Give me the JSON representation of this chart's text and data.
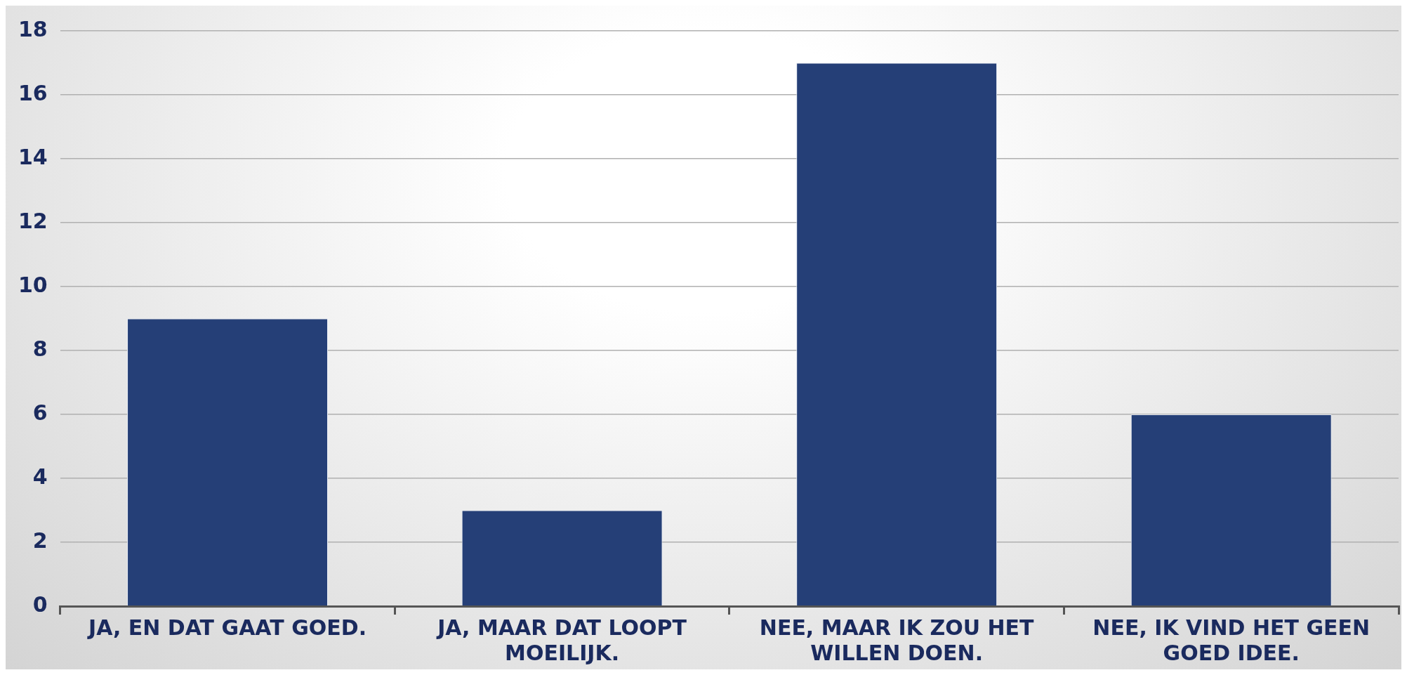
{
  "chart_data": {
    "type": "bar",
    "categories": [
      "JA, EN DAT GAAT GOED.",
      "JA, MAAR DAT LOOPT MOEILIJK.",
      "NEE, MAAR IK ZOU HET WILLEN DOEN.",
      "NEE, IK VIND HET GEEN GOED IDEE."
    ],
    "values": [
      9,
      3,
      17,
      6
    ],
    "color": "#253f77",
    "ylim": [
      0,
      18
    ],
    "yticks": [
      0,
      2,
      4,
      6,
      8,
      10,
      12,
      14,
      16,
      18
    ],
    "grid": "y",
    "legend": false
  }
}
